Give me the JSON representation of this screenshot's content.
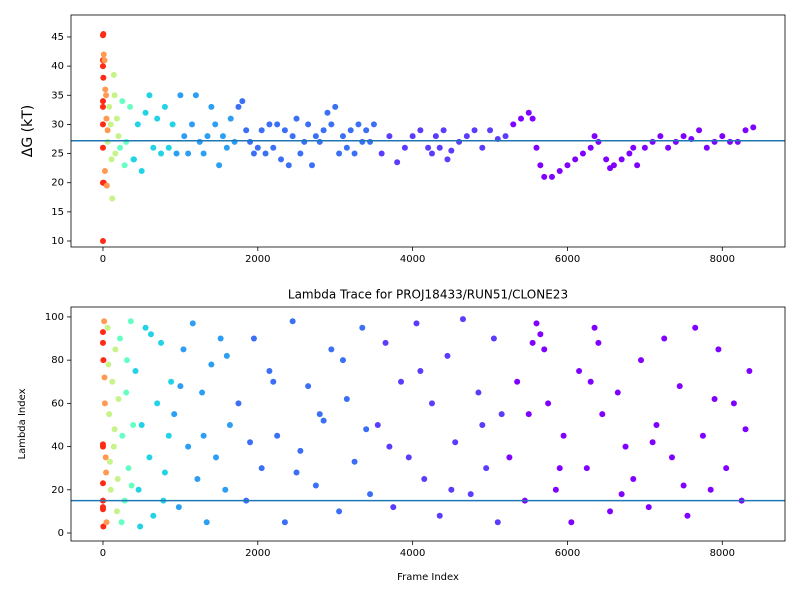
{
  "chart_data": [
    {
      "type": "scatter",
      "ylabel": "ΔG (kT)",
      "xlim": [
        -413,
        8810
      ],
      "ylim": [
        8.97,
        48.77
      ],
      "xticks": [
        0,
        2000,
        4000,
        6000,
        8000
      ],
      "yticks": [
        10,
        15,
        20,
        25,
        30,
        35,
        40,
        45
      ],
      "hline": {
        "value": 27.2,
        "color": "#1f77b4"
      },
      "series": [
        {
          "color": "#ff2a15",
          "x": [
            0,
            0,
            0,
            0,
            0,
            0,
            0,
            0,
            0,
            5,
            5,
            10
          ],
          "values": [
            10,
            20,
            26,
            30,
            33,
            34,
            40,
            41,
            45.3,
            45.5,
            38,
            20
          ]
        },
        {
          "color": "#ff9a50",
          "x": [
            10,
            20,
            30,
            40,
            50,
            60,
            25,
            45
          ],
          "values": [
            42,
            41,
            36,
            35,
            19.5,
            29,
            22,
            31
          ]
        },
        {
          "color": "#c6f38a",
          "x": [
            60,
            80,
            100,
            120,
            140,
            160,
            180,
            200,
            110,
            150
          ],
          "values": [
            27,
            33,
            30,
            17.3,
            38.5,
            25,
            31,
            28,
            24,
            35
          ]
        },
        {
          "color": "#66ffc4",
          "x": [
            220,
            250,
            280,
            300,
            350,
            390
          ],
          "values": [
            26,
            34,
            23,
            27,
            33,
            24
          ]
        },
        {
          "color": "#22d3e6",
          "x": [
            400,
            450,
            500,
            550,
            600,
            650,
            700,
            750,
            800,
            850,
            900
          ],
          "values": [
            24,
            30,
            22,
            32,
            35,
            26,
            31,
            25,
            33,
            26,
            30
          ]
        },
        {
          "color": "#2c9ef3",
          "x": [
            950,
            1000,
            1050,
            1100,
            1150,
            1200,
            1250,
            1300,
            1350,
            1400,
            1450,
            1500,
            1550,
            1600,
            1650,
            1700
          ],
          "values": [
            25,
            35,
            28,
            25,
            30,
            35,
            27,
            25,
            28,
            33,
            30,
            23,
            28,
            26,
            31,
            27
          ]
        },
        {
          "color": "#3a6ff6",
          "x": [
            1750,
            1800,
            1850,
            1900,
            1950,
            2000,
            2050,
            2100,
            2150,
            2200,
            2250,
            2300,
            2350,
            2400,
            2450,
            2500,
            2550,
            2600,
            2650,
            2700,
            2750,
            2800,
            2850,
            2900,
            2950,
            3000,
            3050,
            3100,
            3150,
            3200,
            3250,
            3300,
            3350,
            3400,
            3450,
            3500
          ],
          "values": [
            33,
            34,
            29,
            27,
            25,
            26,
            29,
            25,
            30,
            26,
            30,
            24,
            29,
            23,
            28,
            31,
            25,
            27,
            30,
            23,
            28,
            27,
            29,
            32,
            30,
            33,
            25,
            28,
            26,
            29,
            25,
            30,
            27,
            29,
            27,
            30
          ]
        },
        {
          "color": "#5a3cfc",
          "x": [
            3600,
            3700,
            3800,
            3900,
            4000,
            4100,
            4200,
            4250,
            4300,
            4350,
            4400,
            4450,
            4500,
            4600,
            4700,
            4800,
            4900,
            5000,
            5100,
            5200
          ],
          "values": [
            25,
            28,
            23.5,
            26,
            28,
            29,
            26,
            25,
            28,
            26,
            29,
            24,
            25.5,
            27,
            28,
            29,
            26,
            29,
            27.5,
            28
          ]
        },
        {
          "color": "#8000ff",
          "x": [
            5300,
            5400,
            5500,
            5550,
            5600,
            5650,
            5700,
            5800,
            5900,
            6000,
            6100,
            6200,
            6300,
            6350,
            6400,
            6500,
            6550,
            6600,
            6700,
            6800,
            6850,
            6900,
            7000,
            7100,
            7200,
            7300,
            7400,
            7500,
            7600,
            7700,
            7800,
            7900,
            8000,
            8100,
            8200,
            8300,
            8400
          ],
          "values": [
            30,
            31,
            32,
            31,
            26,
            23,
            21,
            21,
            22,
            23,
            24,
            25,
            26,
            28,
            27,
            24,
            22.5,
            23,
            24,
            25,
            26,
            23,
            26,
            27,
            28,
            26,
            27,
            28,
            27.5,
            29,
            26,
            27,
            28,
            27,
            27,
            29,
            29.5
          ]
        }
      ]
    },
    {
      "type": "scatter",
      "title": "Lambda Trace for PROJ18433/RUN51/CLONE23",
      "xlabel": "Frame Index",
      "ylabel": "Lambda Index",
      "xlim": [
        -413,
        8810
      ],
      "ylim": [
        -3.7,
        104.6
      ],
      "xticks": [
        0,
        2000,
        4000,
        6000,
        8000
      ],
      "yticks": [
        0,
        20,
        40,
        60,
        80,
        100
      ],
      "hline": {
        "value": 15,
        "color": "#1f77b4"
      },
      "series": [
        {
          "color": "#ff2a15",
          "x": [
            0,
            0,
            0,
            0,
            0,
            0,
            0,
            0,
            5,
            5
          ],
          "values": [
            93,
            88,
            41,
            40,
            23,
            15,
            12,
            11,
            3,
            80
          ]
        },
        {
          "color": "#ff9a50",
          "x": [
            15,
            25,
            35,
            45,
            20,
            40
          ],
          "values": [
            98,
            60,
            35,
            5,
            72,
            28
          ]
        },
        {
          "color": "#c6f38a",
          "x": [
            60,
            80,
            100,
            120,
            140,
            160,
            180,
            200,
            90,
            150,
            70,
            190
          ],
          "values": [
            95,
            55,
            20,
            70,
            40,
            85,
            10,
            62,
            33,
            48,
            78,
            25
          ]
        },
        {
          "color": "#66ffc4",
          "x": [
            220,
            250,
            280,
            300,
            330,
            360,
            390,
            240,
            310,
            370
          ],
          "values": [
            90,
            45,
            15,
            65,
            30,
            98,
            50,
            5,
            80,
            22
          ]
        },
        {
          "color": "#22d3e6",
          "x": [
            420,
            460,
            500,
            550,
            600,
            650,
            700,
            750,
            800,
            850,
            880,
            480,
            620,
            780
          ],
          "values": [
            75,
            20,
            50,
            95,
            35,
            8,
            60,
            88,
            28,
            45,
            70,
            3,
            92,
            15
          ]
        },
        {
          "color": "#2c9ef3",
          "x": [
            920,
            980,
            1040,
            1100,
            1160,
            1220,
            1280,
            1340,
            1400,
            1460,
            1520,
            1580,
            1640,
            1000,
            1300,
            1600
          ],
          "values": [
            55,
            12,
            85,
            40,
            97,
            25,
            65,
            5,
            78,
            35,
            90,
            20,
            50,
            68,
            45,
            82
          ]
        },
        {
          "color": "#3a6ff6",
          "x": [
            1750,
            1850,
            1950,
            2050,
            2150,
            2250,
            2350,
            2450,
            2550,
            2650,
            2750,
            2850,
            2950,
            3050,
            3150,
            3250,
            3350,
            3450,
            1900,
            2200,
            2500,
            2800,
            3100,
            3400
          ],
          "values": [
            60,
            15,
            90,
            30,
            75,
            45,
            5,
            98,
            38,
            68,
            22,
            52,
            85,
            10,
            62,
            33,
            95,
            18,
            42,
            70,
            28,
            55,
            80,
            48
          ]
        },
        {
          "color": "#5a3cfc",
          "x": [
            3550,
            3650,
            3750,
            3850,
            3950,
            4050,
            4150,
            4250,
            4350,
            4450,
            4550,
            4650,
            4750,
            4850,
            4950,
            5050,
            5150,
            3700,
            4100,
            4500,
            4900,
            5100
          ],
          "values": [
            50,
            88,
            12,
            70,
            35,
            97,
            25,
            60,
            8,
            82,
            42,
            99,
            18,
            65,
            30,
            90,
            55,
            40,
            75,
            20,
            50,
            5
          ]
        },
        {
          "color": "#8000ff",
          "x": [
            5250,
            5350,
            5450,
            5550,
            5600,
            5650,
            5700,
            5750,
            5850,
            5950,
            6050,
            6150,
            6250,
            6350,
            6400,
            6450,
            6550,
            6650,
            6750,
            6850,
            6950,
            7050,
            7150,
            7250,
            7350,
            7450,
            7550,
            7650,
            7750,
            7850,
            7950,
            8050,
            8150,
            8250,
            8350,
            5500,
            5900,
            6300,
            6700,
            7100,
            7500,
            7900,
            8300
          ],
          "values": [
            35,
            70,
            15,
            88,
            97,
            92,
            85,
            60,
            20,
            45,
            5,
            75,
            30,
            95,
            88,
            55,
            10,
            65,
            40,
            25,
            80,
            12,
            50,
            90,
            35,
            68,
            8,
            95,
            45,
            20,
            85,
            30,
            60,
            15,
            75,
            55,
            30,
            70,
            18,
            42,
            22,
            62,
            48
          ]
        }
      ]
    }
  ]
}
